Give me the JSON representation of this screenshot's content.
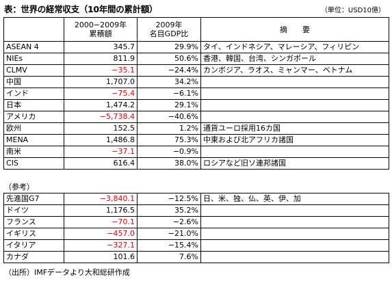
{
  "title": "表：世界の経常収支（10年間の累計額）",
  "unit": "（単位：USD10億）",
  "header": {
    "col_cum": "2000−2009年\n累積額",
    "col_gdp": "2009年\n名目GDP比",
    "col_note": "摘　　要"
  },
  "rows": [
    {
      "name": "ASEAN 4",
      "cum": "345.7",
      "gdp": "29.9%",
      "note": "タイ、インドネシア、マレーシア、フィリピン",
      "neg": false
    },
    {
      "name": "NIEs",
      "cum": "811.9",
      "gdp": "50.6%",
      "note": "香港、韓国、台湾、シンガポール",
      "neg": false
    },
    {
      "name": "CLMV",
      "cum": "−35.1",
      "gdp": "−24.4%",
      "note": "カンボジア、ラオス、ミャンマー、ベトナム",
      "neg": true
    },
    {
      "name": "中国",
      "cum": "1,707.0",
      "gdp": "34.2%",
      "note": "",
      "neg": false
    },
    {
      "name": "インド",
      "cum": "−75.4",
      "gdp": "−6.1%",
      "note": "",
      "neg": true
    },
    {
      "name": "日本",
      "cum": "1,474.2",
      "gdp": "29.1%",
      "note": "",
      "neg": false
    },
    {
      "name": "アメリカ",
      "cum": "−5,738.4",
      "gdp": "−40.6%",
      "note": "",
      "neg": true
    },
    {
      "name": "欧州",
      "cum": "152.5",
      "gdp": "1.2%",
      "note": "通貨ユーロ採用16カ国",
      "neg": false
    },
    {
      "name": "MENA",
      "cum": "1,486.8",
      "gdp": "75.3%",
      "note": "中東および北アフリカ諸国",
      "neg": false
    },
    {
      "name": "南米",
      "cum": "−37.1",
      "gdp": "−0.9%",
      "note": "",
      "neg": true
    },
    {
      "name": "CIS",
      "cum": "616.4",
      "gdp": "38.0%",
      "note": "ロシアなど旧ソ連邦諸国",
      "neg": false
    }
  ],
  "ref_label": "（参考）",
  "ref_rows": [
    {
      "name": "先進国G7",
      "cum": "−3,840.1",
      "gdp": "−12.5%",
      "note": "日、米、独、仏、英、伊、加",
      "neg": true
    },
    {
      "name": "ドイツ",
      "cum": "1,176.5",
      "gdp": "35.2%",
      "note": "",
      "neg": false
    },
    {
      "name": "フランス",
      "cum": "−70.1",
      "gdp": "−2.6%",
      "note": "",
      "neg": true
    },
    {
      "name": "イギリス",
      "cum": "−457.0",
      "gdp": "−21.0%",
      "note": "",
      "neg": true
    },
    {
      "name": "イタリア",
      "cum": "−327.1",
      "gdp": "−15.4%",
      "note": "",
      "neg": true
    },
    {
      "name": "カナダ",
      "cum": "101.6",
      "gdp": "7.6%",
      "note": "",
      "neg": false
    }
  ],
  "source": "（出所）IMFデータより大和総研作成",
  "colors": {
    "negative": "#e10000",
    "text": "#000000"
  }
}
